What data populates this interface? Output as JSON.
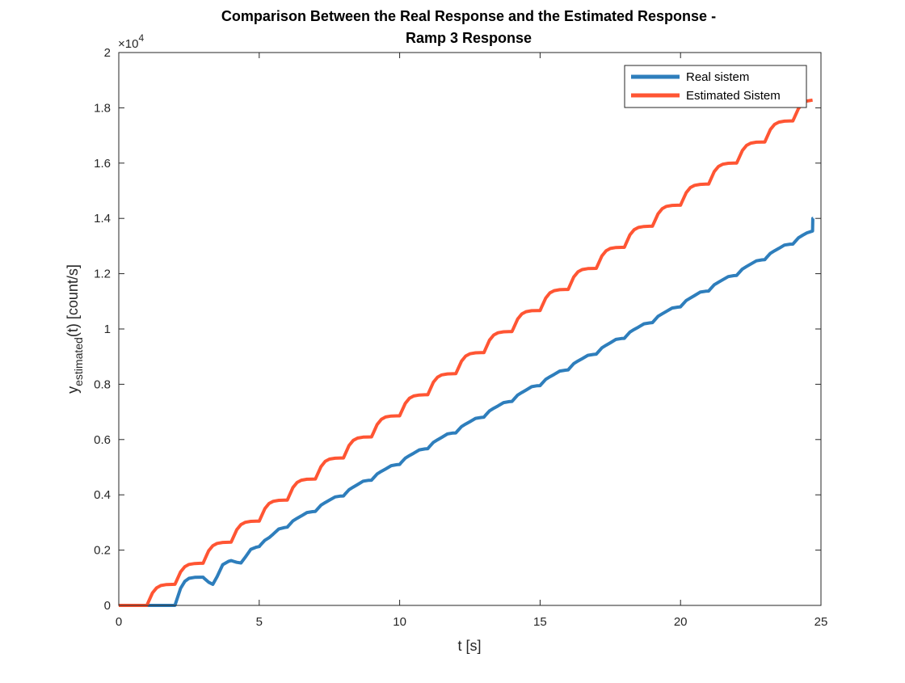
{
  "chart_data": {
    "type": "line",
    "title_line1": "Comparison Between the Real Response and the Estimated Response -",
    "title_line2": "Ramp 3 Response",
    "xlabel": "t [s]",
    "ylabel_main": "y",
    "ylabel_sub": "estimated",
    "ylabel_tail": "(t) [count/s]",
    "y_exponent_label": "×10",
    "y_exponent_power": "4",
    "xlim": [
      0,
      25
    ],
    "ylim": [
      0,
      20000
    ],
    "x_ticks": [
      0,
      5,
      10,
      15,
      20,
      25
    ],
    "x_tick_labels": [
      "0",
      "5",
      "10",
      "15",
      "20",
      "25"
    ],
    "y_ticks": [
      0,
      2000,
      4000,
      6000,
      8000,
      10000,
      12000,
      14000,
      16000,
      18000,
      20000
    ],
    "y_tick_labels": [
      "0",
      "0.2",
      "0.4",
      "0.6",
      "0.8",
      "1",
      "1.2",
      "1.4",
      "1.6",
      "1.8",
      "2"
    ],
    "grid": false,
    "legend_position": "top-right",
    "series": [
      {
        "name": "Real sistem",
        "color": "#2e7ebc",
        "x": [
          0,
          2.0,
          2.05,
          2.2,
          2.35,
          2.5,
          2.7,
          2.9,
          3.0,
          3.05,
          3.2,
          3.35,
          3.5,
          3.7,
          3.9,
          4.0,
          4.05,
          4.2,
          4.35,
          4.5,
          4.7,
          4.9,
          5.0,
          5.05,
          5.2,
          5.35,
          5.5,
          5.7,
          5.9,
          6.0,
          6.05,
          6.2,
          6.35,
          6.5,
          6.7,
          6.9,
          7.0,
          7.05,
          7.2,
          7.35,
          7.5,
          7.7,
          7.9,
          8.0,
          8.05,
          8.2,
          8.35,
          8.5,
          8.7,
          8.9,
          9.0,
          9.05,
          9.2,
          9.35,
          9.5,
          9.7,
          9.9,
          10.0,
          10.05,
          10.2,
          10.35,
          10.5,
          10.7,
          10.9,
          11.0,
          11.05,
          11.2,
          11.35,
          11.5,
          11.7,
          11.9,
          12.0,
          12.05,
          12.2,
          12.35,
          12.5,
          12.7,
          12.9,
          13.0,
          13.05,
          13.2,
          13.35,
          13.5,
          13.7,
          13.9,
          14.0,
          14.05,
          14.2,
          14.35,
          14.5,
          14.7,
          14.9,
          15.0,
          15.05,
          15.2,
          15.35,
          15.5,
          15.7,
          15.9,
          16.0,
          16.05,
          16.2,
          16.35,
          16.5,
          16.7,
          16.9,
          17.0,
          17.05,
          17.2,
          17.35,
          17.5,
          17.7,
          17.9,
          18.0,
          18.05,
          18.2,
          18.35,
          18.5,
          18.7,
          18.9,
          19.0,
          19.05,
          19.2,
          19.35,
          19.5,
          19.7,
          19.9,
          20.0,
          20.05,
          20.2,
          20.35,
          20.5,
          20.7,
          20.9,
          21.0,
          21.05,
          21.2,
          21.35,
          21.5,
          21.7,
          21.9,
          22.0,
          22.05,
          22.2,
          22.35,
          22.5,
          22.7,
          22.9,
          23.0,
          23.05,
          23.2,
          23.35,
          23.5,
          23.7,
          23.9,
          24.0,
          24.05,
          24.2,
          24.35,
          24.5,
          24.7,
          24.71,
          24.72
        ],
        "y": [
          0,
          0,
          162,
          616,
          869,
          979,
          1015,
          1020,
          1020,
          972,
          838,
          764,
          1042,
          1473,
          1591,
          1620,
          1604,
          1559,
          1534,
          1736,
          2028,
          2109,
          2130,
          2190,
          2358,
          2451,
          2581,
          2766,
          2817,
          2830,
          2890,
          3058,
          3151,
          3238,
          3359,
          3393,
          3400,
          3460,
          3628,
          3721,
          3806,
          3923,
          3955,
          3960,
          4020,
          4188,
          4281,
          4371,
          4493,
          4527,
          4530,
          4590,
          4758,
          4851,
          4937,
          5056,
          5090,
          5100,
          5160,
          5328,
          5421,
          5507,
          5626,
          5660,
          5670,
          5730,
          5898,
          5991,
          6080,
          6202,
          6236,
          6240,
          6300,
          6468,
          6561,
          6647,
          6766,
          6799,
          6810,
          6870,
          7038,
          7131,
          7217,
          7336,
          7370,
          7380,
          7440,
          7608,
          7701,
          7790,
          7912,
          7946,
          7950,
          8010,
          8178,
          8271,
          8357,
          8476,
          8510,
          8520,
          8580,
          8748,
          8841,
          8927,
          9046,
          9080,
          9090,
          9150,
          9318,
          9411,
          9500,
          9622,
          9656,
          9660,
          9720,
          9888,
          9981,
          10067,
          10186,
          10220,
          10230,
          10290,
          10458,
          10551,
          10637,
          10756,
          10789,
          10800,
          10860,
          11028,
          11121,
          11211,
          11332,
          11366,
          11370,
          11430,
          11598,
          11691,
          11777,
          11896,
          11930,
          11940,
          12000,
          12168,
          12261,
          12347,
          12466,
          12500,
          12510,
          12570,
          12738,
          12831,
          12916,
          13034,
          13066,
          13070,
          13130,
          13298,
          13391,
          13477,
          13545,
          14000,
          14000
        ]
      },
      {
        "name": "Estimated Sistem",
        "color": "#ff5533",
        "x": [
          0,
          1.0,
          1.05,
          1.2,
          1.35,
          1.5,
          1.7,
          1.9,
          2.0,
          2.05,
          2.2,
          2.35,
          2.5,
          2.7,
          2.9,
          3.0,
          3.05,
          3.2,
          3.35,
          3.5,
          3.7,
          3.9,
          4.0,
          4.05,
          4.2,
          4.35,
          4.5,
          4.7,
          4.9,
          5.0,
          5.05,
          5.2,
          5.35,
          5.5,
          5.7,
          5.9,
          6.0,
          6.05,
          6.2,
          6.35,
          6.5,
          6.7,
          6.9,
          7.0,
          7.05,
          7.2,
          7.35,
          7.5,
          7.7,
          7.9,
          8.0,
          8.05,
          8.2,
          8.35,
          8.5,
          8.7,
          8.9,
          9.0,
          9.05,
          9.2,
          9.35,
          9.5,
          9.7,
          9.9,
          10.0,
          10.05,
          10.2,
          10.35,
          10.5,
          10.7,
          10.9,
          11.0,
          11.05,
          11.2,
          11.35,
          11.5,
          11.7,
          11.9,
          12.0,
          12.05,
          12.2,
          12.35,
          12.5,
          12.7,
          12.9,
          13.0,
          13.05,
          13.2,
          13.35,
          13.5,
          13.7,
          13.9,
          14.0,
          14.05,
          14.2,
          14.35,
          14.5,
          14.7,
          14.9,
          15.0,
          15.05,
          15.2,
          15.35,
          15.5,
          15.7,
          15.9,
          16.0,
          16.05,
          16.2,
          16.35,
          16.5,
          16.7,
          16.9,
          17.0,
          17.05,
          17.2,
          17.35,
          17.5,
          17.7,
          17.9,
          18.0,
          18.05,
          18.2,
          18.35,
          18.5,
          18.7,
          18.9,
          19.0,
          19.05,
          19.2,
          19.35,
          19.5,
          19.7,
          19.9,
          20.0,
          20.05,
          20.2,
          20.35,
          20.5,
          20.7,
          20.9,
          21.0,
          21.05,
          21.2,
          21.35,
          21.5,
          21.7,
          21.9,
          22.0,
          22.05,
          22.2,
          22.35,
          22.5,
          22.7,
          22.9,
          23.0,
          23.05,
          23.2,
          23.35,
          23.5,
          23.7,
          23.9,
          24.0,
          24.05,
          24.2,
          24.35,
          24.5,
          24.7
        ],
        "y": [
          0,
          0,
          114,
          452,
          638,
          719,
          754,
          761,
          762,
          876,
          1214,
          1400,
          1481,
          1516,
          1523,
          1524,
          1638,
          1976,
          2162,
          2243,
          2278,
          2285,
          2286,
          2400,
          2738,
          2924,
          3005,
          3040,
          3047,
          3048,
          3162,
          3500,
          3686,
          3767,
          3802,
          3809,
          3810,
          3924,
          4262,
          4448,
          4529,
          4564,
          4571,
          4572,
          4686,
          5024,
          5210,
          5291,
          5326,
          5333,
          5334,
          5448,
          5786,
          5972,
          6053,
          6088,
          6095,
          6096,
          6210,
          6548,
          6734,
          6815,
          6850,
          6857,
          6858,
          6972,
          7310,
          7496,
          7577,
          7612,
          7619,
          7620,
          7734,
          8072,
          8258,
          8339,
          8374,
          8381,
          8382,
          8496,
          8834,
          9020,
          9101,
          9136,
          9143,
          9144,
          9258,
          9596,
          9782,
          9863,
          9898,
          9905,
          9906,
          10020,
          10358,
          10544,
          10625,
          10660,
          10667,
          10668,
          10782,
          11120,
          11306,
          11387,
          11422,
          11429,
          11430,
          11544,
          11882,
          12068,
          12149,
          12184,
          12191,
          12192,
          12306,
          12644,
          12830,
          12911,
          12946,
          12953,
          12954,
          13068,
          13406,
          13592,
          13673,
          13708,
          13715,
          13716,
          13830,
          14168,
          14354,
          14435,
          14470,
          14477,
          14478,
          14592,
          14930,
          15116,
          15197,
          15232,
          15239,
          15240,
          15354,
          15692,
          15878,
          15959,
          15994,
          16001,
          16002,
          16116,
          16454,
          16640,
          16721,
          16756,
          16763,
          16764,
          16878,
          17216,
          17402,
          17483,
          17518,
          17525,
          17526,
          17640,
          17978,
          18164,
          18245,
          18280
        ]
      }
    ]
  }
}
